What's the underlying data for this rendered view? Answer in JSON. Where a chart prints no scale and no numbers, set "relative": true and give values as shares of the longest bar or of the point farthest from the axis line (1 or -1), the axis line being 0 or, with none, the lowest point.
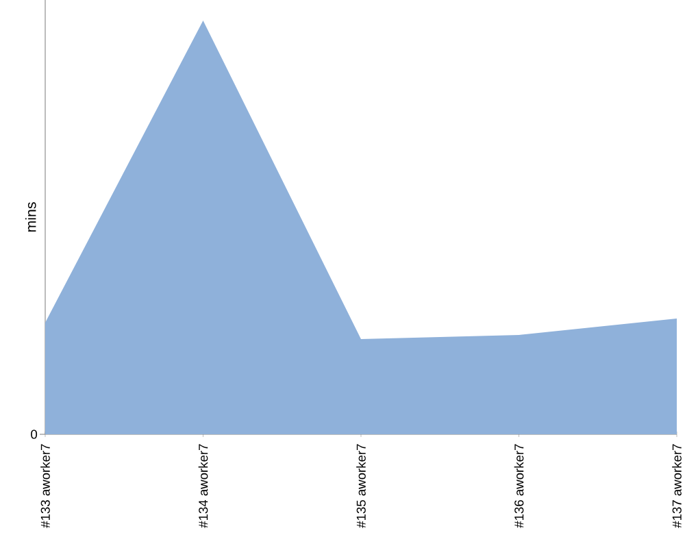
{
  "chart_data": {
    "type": "area",
    "ylabel": "mins",
    "relative": true,
    "annotations": [
      "0"
    ],
    "categories": [
      "#133 aworker7",
      "#134 aworker7",
      "#135 aworker7",
      "#136 aworker7",
      "#137 aworker7"
    ],
    "values": [
      0.27,
      1,
      0.23,
      0.24,
      0.28
    ],
    "color": "#8fb1da"
  }
}
